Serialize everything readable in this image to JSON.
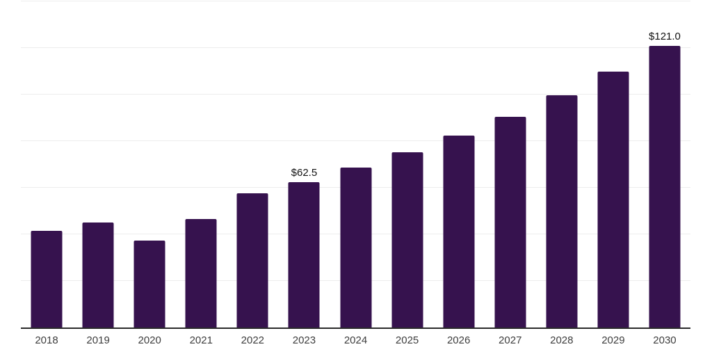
{
  "page": {
    "background": "#ffffff"
  },
  "chart_data": {
    "type": "bar",
    "categories": [
      "2018",
      "2019",
      "2020",
      "2021",
      "2022",
      "2023",
      "2024",
      "2025",
      "2026",
      "2027",
      "2028",
      "2029",
      "2030"
    ],
    "values": [
      41.6,
      45.1,
      37.4,
      46.6,
      57.6,
      62.5,
      68.7,
      75.1,
      82.4,
      90.4,
      99.7,
      110.0,
      121.0
    ],
    "data_labels": {
      "2023": "$62.5",
      "2030": "$121.0"
    },
    "ylim": [
      0,
      140
    ],
    "grid_step": 20,
    "grid": true,
    "legend": false,
    "xlabel": "",
    "ylabel": "",
    "y_tick_labels_visible": false,
    "colors": {
      "bar": "#36124e",
      "gridline": "#ededed",
      "axis": "#2a2a2a",
      "x_tick_text": "#3d3d3d",
      "value_label_text": "#111111"
    }
  }
}
